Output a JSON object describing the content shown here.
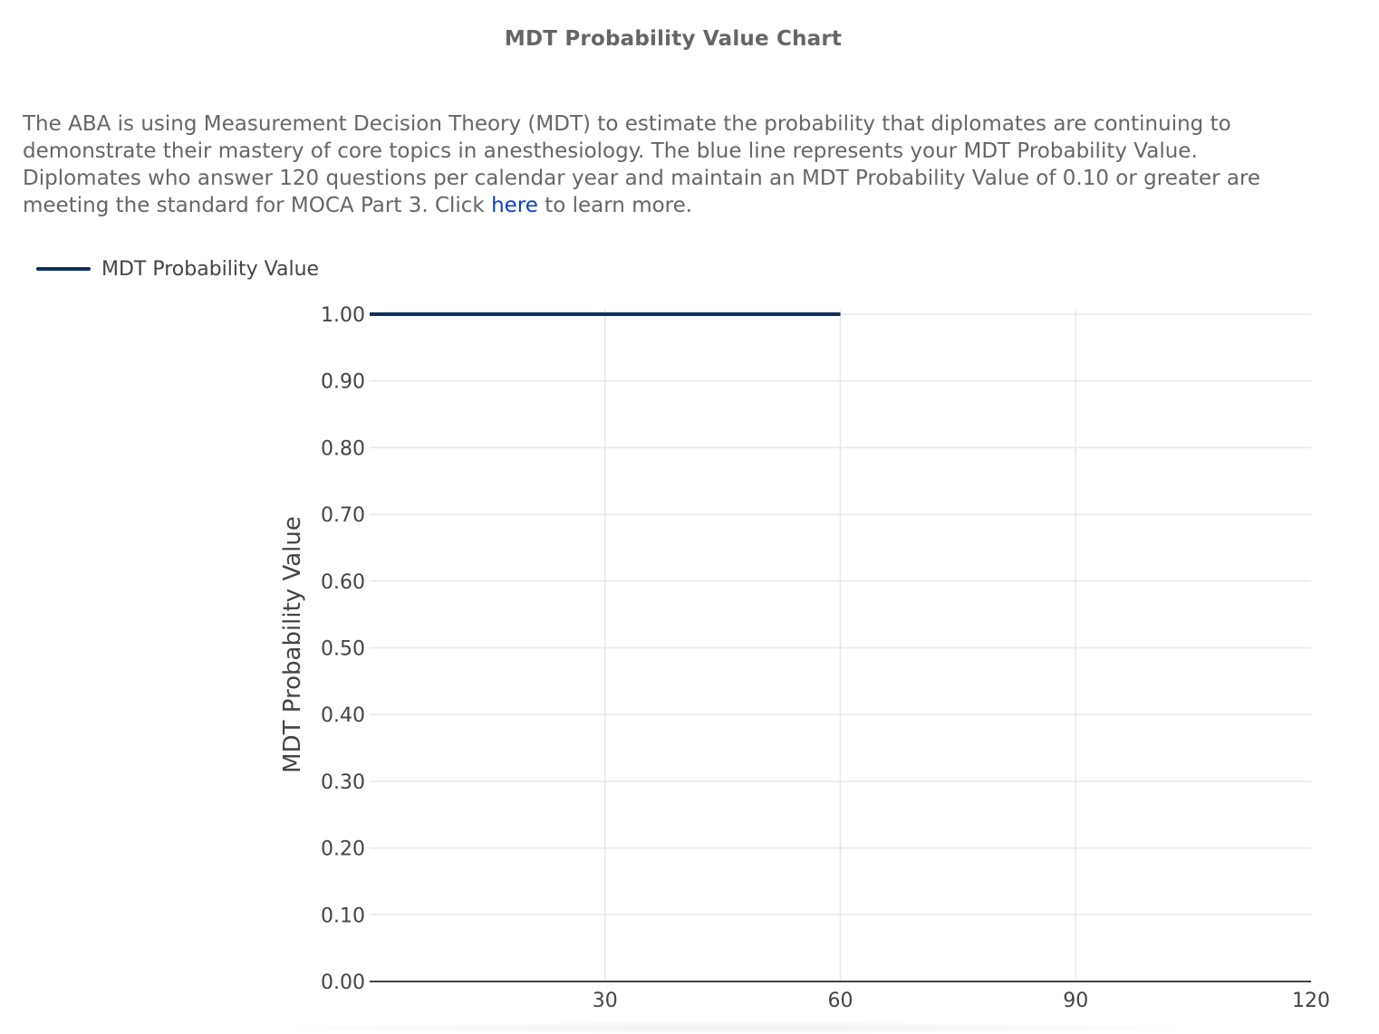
{
  "page": {
    "title": "MDT Probability Value Chart",
    "description_before_link": "The ABA is using Measurement Decision Theory (MDT) to estimate the probability that diplomates are continuing to demonstrate their mastery of core topics in anesthesiology. The blue line represents your MDT Probability Value. Diplomates who answer 120 questions per calendar year and maintain an MDT Probability Value of 0.10 or greater are meeting the standard for MOCA Part 3. Click ",
    "link_text": "here",
    "description_after_link": " to learn more."
  },
  "chart_data": {
    "type": "line",
    "ylabel": "MDT Probability Value",
    "xlabel": "",
    "xlim": [
      0,
      120
    ],
    "ylim": [
      0,
      1
    ],
    "x_ticks": [
      30,
      60,
      90,
      120
    ],
    "y_ticks": [
      "0.00",
      "0.10",
      "0.20",
      "0.30",
      "0.40",
      "0.50",
      "0.60",
      "0.70",
      "0.80",
      "0.90",
      "1.00"
    ],
    "grid": true,
    "legend_position": "top-left",
    "series": [
      {
        "name": "MDT Probability Value",
        "color": "#0d2f5a",
        "x": [
          0,
          60
        ],
        "y": [
          1.0,
          1.0
        ]
      }
    ]
  }
}
